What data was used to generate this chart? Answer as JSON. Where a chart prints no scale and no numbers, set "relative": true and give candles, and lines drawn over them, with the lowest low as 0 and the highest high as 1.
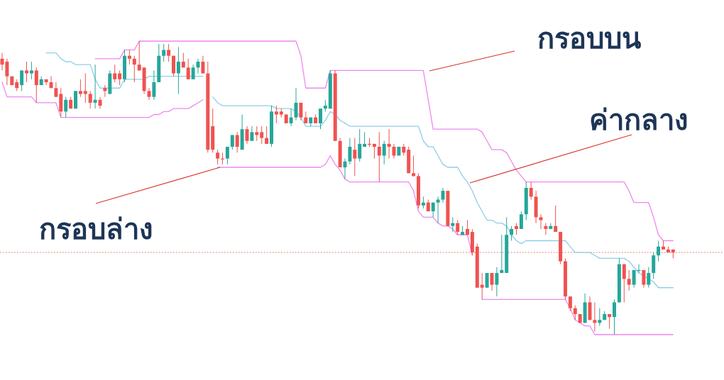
{
  "chart_data": {
    "type": "candlestick",
    "relative": true,
    "categories": [
      null,
      null,
      null,
      null,
      null,
      null,
      null,
      null,
      null,
      null,
      null,
      null,
      null,
      null,
      null,
      null,
      null,
      null,
      null,
      null,
      null,
      null,
      null,
      null,
      null,
      null,
      null,
      null,
      null,
      null,
      null,
      null,
      null,
      null,
      null,
      null,
      null,
      null,
      null,
      null,
      null,
      null,
      null,
      null,
      null,
      null,
      null,
      null,
      null,
      null,
      null,
      null,
      null,
      null,
      null,
      null,
      null,
      null,
      null,
      null,
      null,
      null,
      null,
      null,
      null,
      null,
      null,
      null,
      null,
      null,
      null,
      null,
      null,
      null,
      null,
      null,
      null,
      null,
      null,
      null,
      null,
      null,
      null,
      null,
      null,
      null,
      null,
      null,
      null,
      null,
      null,
      null,
      null,
      null,
      null,
      null,
      null,
      null,
      null,
      null,
      null,
      null,
      null,
      null,
      null,
      null,
      null,
      null,
      null,
      null,
      null,
      null,
      null,
      null,
      null,
      null,
      null,
      null,
      null,
      null,
      null,
      null,
      null,
      null,
      null,
      null,
      null,
      null,
      null,
      null,
      null,
      null,
      null,
      null,
      null,
      null,
      null,
      null
    ],
    "ohlc": [
      [
        0.94,
        0.96,
        0.9,
        0.92
      ],
      [
        0.93,
        0.94,
        0.85,
        0.88
      ],
      [
        0.88,
        0.88,
        0.85,
        0.85
      ],
      [
        0.86,
        0.87,
        0.83,
        0.84
      ],
      [
        0.85,
        0.9,
        0.83,
        0.9
      ],
      [
        0.9,
        0.93,
        0.86,
        0.89
      ],
      [
        0.89,
        0.93,
        0.87,
        0.9
      ],
      [
        0.9,
        0.91,
        0.79,
        0.85
      ],
      [
        0.85,
        0.88,
        0.85,
        0.87
      ],
      [
        0.87,
        0.87,
        0.85,
        0.86
      ],
      [
        0.86,
        0.88,
        0.84,
        0.84
      ],
      [
        0.84,
        0.86,
        0.81,
        0.81
      ],
      [
        0.82,
        0.84,
        0.74,
        0.76
      ],
      [
        0.76,
        0.81,
        0.74,
        0.8
      ],
      [
        0.8,
        0.81,
        0.77,
        0.77
      ],
      [
        0.77,
        0.83,
        0.77,
        0.83
      ],
      [
        0.83,
        0.87,
        0.81,
        0.82
      ],
      [
        0.83,
        0.89,
        0.79,
        0.82
      ],
      [
        0.82,
        0.83,
        0.77,
        0.79
      ],
      [
        0.79,
        0.92,
        0.77,
        0.8
      ],
      [
        0.8,
        0.81,
        0.77,
        0.78
      ],
      [
        0.84,
        0.85,
        0.81,
        0.83
      ],
      [
        0.82,
        0.9,
        0.82,
        0.89
      ],
      [
        0.89,
        0.92,
        0.86,
        0.87
      ],
      [
        0.89,
        0.9,
        0.85,
        0.87
      ],
      [
        0.87,
        0.97,
        0.86,
        0.95
      ],
      [
        0.95,
        0.97,
        0.92,
        0.94
      ],
      [
        0.94,
        0.95,
        0.86,
        0.92
      ],
      [
        0.92,
        1.0,
        0.9,
        0.9
      ],
      [
        0.91,
        0.91,
        0.82,
        0.83
      ],
      [
        0.83,
        0.84,
        0.8,
        0.81
      ],
      [
        0.81,
        0.9,
        0.8,
        0.86
      ],
      [
        0.86,
        0.99,
        0.86,
        0.95
      ],
      [
        0.95,
        0.99,
        0.93,
        0.97
      ],
      [
        0.97,
        0.99,
        0.93,
        0.95
      ],
      [
        0.95,
        0.95,
        0.88,
        0.89
      ],
      [
        0.89,
        0.98,
        0.82,
        0.93
      ],
      [
        0.93,
        0.96,
        0.91,
        0.91
      ],
      [
        0.91,
        0.94,
        0.87,
        0.87
      ],
      [
        0.87,
        0.92,
        0.87,
        0.91
      ],
      [
        0.91,
        0.94,
        0.89,
        0.93
      ],
      [
        0.93,
        0.95,
        0.89,
        0.89
      ],
      [
        0.89,
        0.93,
        0.62,
        0.63
      ],
      [
        0.71,
        0.77,
        0.62,
        0.63
      ],
      [
        0.62,
        0.63,
        0.58,
        0.6
      ],
      [
        0.6,
        0.62,
        0.58,
        0.6
      ],
      [
        0.6,
        0.64,
        0.58,
        0.64
      ],
      [
        0.64,
        0.68,
        0.63,
        0.68
      ],
      [
        0.68,
        0.69,
        0.62,
        0.64
      ],
      [
        0.63,
        0.75,
        0.63,
        0.7
      ],
      [
        0.7,
        0.71,
        0.65,
        0.66
      ],
      [
        0.66,
        0.71,
        0.66,
        0.69
      ],
      [
        0.69,
        0.71,
        0.66,
        0.68
      ],
      [
        0.69,
        0.71,
        0.65,
        0.67
      ],
      [
        0.67,
        0.71,
        0.65,
        0.65
      ],
      [
        0.65,
        0.78,
        0.64,
        0.76
      ],
      [
        0.76,
        0.78,
        0.72,
        0.75
      ],
      [
        0.76,
        0.77,
        0.74,
        0.75
      ],
      [
        0.75,
        0.75,
        0.72,
        0.72
      ],
      [
        0.72,
        0.77,
        0.71,
        0.74
      ],
      [
        0.74,
        0.84,
        0.73,
        0.79
      ],
      [
        0.79,
        0.79,
        0.73,
        0.74
      ],
      [
        0.74,
        0.76,
        0.72,
        0.72
      ],
      [
        0.72,
        0.74,
        0.71,
        0.74
      ],
      [
        0.74,
        0.75,
        0.72,
        0.72
      ],
      [
        0.72,
        0.77,
        0.7,
        0.77
      ],
      [
        0.77,
        0.8,
        0.76,
        0.78
      ],
      [
        0.77,
        0.9,
        0.77,
        0.89
      ],
      [
        0.89,
        0.9,
        0.66,
        0.66
      ],
      [
        0.66,
        0.67,
        0.57,
        0.57
      ],
      [
        0.57,
        0.6,
        0.53,
        0.59
      ],
      [
        0.59,
        0.67,
        0.58,
        0.64
      ],
      [
        0.63,
        0.67,
        0.54,
        0.6
      ],
      [
        0.6,
        0.7,
        0.59,
        0.65
      ],
      [
        0.64,
        0.69,
        0.64,
        0.65
      ],
      [
        0.65,
        0.67,
        0.64,
        0.65
      ],
      [
        0.65,
        0.65,
        0.6,
        0.64
      ],
      [
        0.64,
        0.69,
        0.52,
        0.61
      ],
      [
        0.61,
        0.66,
        0.58,
        0.65
      ],
      [
        0.65,
        0.7,
        0.6,
        0.64
      ],
      [
        0.64,
        0.65,
        0.6,
        0.61
      ],
      [
        0.61,
        0.64,
        0.61,
        0.64
      ],
      [
        0.64,
        0.65,
        0.61,
        0.62
      ],
      [
        0.63,
        0.64,
        0.55,
        0.55
      ],
      [
        0.55,
        0.61,
        0.54,
        0.54
      ],
      [
        0.54,
        0.55,
        0.43,
        0.44
      ],
      [
        0.44,
        0.47,
        0.43,
        0.45
      ],
      [
        0.45,
        0.46,
        0.42,
        0.42
      ],
      [
        0.42,
        0.45,
        0.4,
        0.45
      ],
      [
        0.45,
        0.47,
        0.38,
        0.46
      ],
      [
        0.46,
        0.5,
        0.45,
        0.49
      ],
      [
        0.49,
        0.49,
        0.37,
        0.37
      ],
      [
        0.37,
        0.4,
        0.35,
        0.38
      ],
      [
        0.38,
        0.39,
        0.34,
        0.35
      ],
      [
        0.34,
        0.37,
        0.34,
        0.35
      ],
      [
        0.36,
        0.39,
        0.34,
        0.34
      ],
      [
        0.35,
        0.36,
        0.27,
        0.28
      ],
      [
        0.3,
        0.31,
        0.16,
        0.16
      ],
      [
        0.17,
        0.21,
        0.12,
        0.16
      ],
      [
        0.16,
        0.21,
        0.16,
        0.21
      ],
      [
        0.21,
        0.21,
        0.15,
        0.17
      ],
      [
        0.17,
        0.23,
        0.13,
        0.21
      ],
      [
        0.21,
        0.34,
        0.21,
        0.22
      ],
      [
        0.21,
        0.4,
        0.21,
        0.34
      ],
      [
        0.34,
        0.37,
        0.32,
        0.36
      ],
      [
        0.37,
        0.38,
        0.34,
        0.36
      ],
      [
        0.36,
        0.42,
        0.36,
        0.41
      ],
      [
        0.41,
        0.52,
        0.39,
        0.5
      ],
      [
        0.5,
        0.52,
        0.46,
        0.47
      ],
      [
        0.47,
        0.49,
        0.38,
        0.4
      ],
      [
        0.4,
        0.41,
        0.36,
        0.39
      ],
      [
        0.37,
        0.38,
        0.34,
        0.36
      ],
      [
        0.36,
        0.38,
        0.36,
        0.37
      ],
      [
        0.37,
        0.44,
        0.35,
        0.35
      ],
      [
        0.35,
        0.35,
        0.24,
        0.25
      ],
      [
        0.25,
        0.26,
        0.12,
        0.13
      ],
      [
        0.13,
        0.13,
        0.08,
        0.09
      ],
      [
        0.09,
        0.1,
        0.05,
        0.07
      ],
      [
        0.07,
        0.07,
        0.04,
        0.04
      ],
      [
        0.04,
        0.14,
        0.04,
        0.11
      ],
      [
        0.11,
        0.13,
        0.05,
        0.05
      ],
      [
        0.05,
        0.11,
        0.01,
        0.04
      ],
      [
        0.04,
        0.09,
        0.03,
        0.05
      ],
      [
        0.05,
        0.08,
        0.05,
        0.07
      ],
      [
        0.07,
        0.07,
        0.02,
        0.06
      ],
      [
        0.06,
        0.12,
        0.0,
        0.11
      ],
      [
        0.11,
        0.26,
        0.11,
        0.24
      ],
      [
        0.24,
        0.24,
        0.11,
        0.19
      ],
      [
        0.19,
        0.22,
        0.15,
        0.17
      ],
      [
        0.17,
        0.22,
        0.16,
        0.22
      ],
      [
        0.22,
        0.24,
        0.21,
        0.22
      ],
      [
        0.22,
        0.22,
        0.16,
        0.17
      ],
      [
        0.17,
        0.23,
        0.16,
        0.21
      ],
      [
        0.21,
        0.28,
        0.19,
        0.27
      ],
      [
        0.27,
        0.32,
        0.25,
        0.3
      ],
      [
        0.3,
        0.32,
        0.29,
        0.29
      ],
      [
        0.29,
        0.3,
        0.28,
        0.28
      ],
      [
        0.29,
        0.29,
        0.26,
        0.28
      ]
    ],
    "colors": [
      "#ef5350",
      "#ef5350",
      "#ef5350",
      "#ef5350",
      "#26a69a",
      "#ef5350",
      "#26a69a",
      "#ef5350",
      "#26a69a",
      "#ef5350",
      "#ef5350",
      "#ef5350",
      "#ef5350",
      "#26a69a",
      "#ef5350",
      "#26a69a",
      "#ef5350",
      "#ef5350",
      "#ef5350",
      "#26a69a",
      "#ef5350",
      "#ef5350",
      "#26a69a",
      "#ef5350",
      "#ef5350",
      "#26a69a",
      "#ef5350",
      "#ef5350",
      "#ef5350",
      "#ef5350",
      "#ef5350",
      "#26a69a",
      "#26a69a",
      "#26a69a",
      "#ef5350",
      "#ef5350",
      "#26a69a",
      "#ef5350",
      "#ef5350",
      "#26a69a",
      "#26a69a",
      "#ef5350",
      "#ef5350",
      "#ef5350",
      "#ef5350",
      "#ef5350",
      "#26a69a",
      "#26a69a",
      "#ef5350",
      "#26a69a",
      "#ef5350",
      "#26a69a",
      "#ef5350",
      "#ef5350",
      "#ef5350",
      "#26a69a",
      "#ef5350",
      "#ef5350",
      "#ef5350",
      "#26a69a",
      "#26a69a",
      "#ef5350",
      "#ef5350",
      "#26a69a",
      "#ef5350",
      "#26a69a",
      "#26a69a",
      "#26a69a",
      "#ef5350",
      "#ef5350",
      "#26a69a",
      "#26a69a",
      "#ef5350",
      "#26a69a",
      "#26a69a",
      "#ef5350",
      "#ef5350",
      "#ef5350",
      "#26a69a",
      "#ef5350",
      "#ef5350",
      "#26a69a",
      "#ef5350",
      "#ef5350",
      "#ef5350",
      "#ef5350",
      "#26a69a",
      "#ef5350",
      "#26a69a",
      "#26a69a",
      "#26a69a",
      "#ef5350",
      "#26a69a",
      "#ef5350",
      "#26a69a",
      "#ef5350",
      "#ef5350",
      "#ef5350",
      "#ef5350",
      "#26a69a",
      "#ef5350",
      "#26a69a",
      "#26a69a",
      "#26a69a",
      "#26a69a",
      "#ef5350",
      "#26a69a",
      "#26a69a",
      "#ef5350",
      "#ef5350",
      "#ef5350",
      "#ef5350",
      "#26a69a",
      "#ef5350",
      "#ef5350",
      "#ef5350",
      "#ef5350",
      "#ef5350",
      "#ef5350",
      "#26a69a",
      "#ef5350",
      "#ef5350",
      "#26a69a",
      "#26a69a",
      "#ef5350",
      "#26a69a",
      "#26a69a",
      "#ef5350",
      "#ef5350",
      "#26a69a",
      "#26a69a",
      "#ef5350",
      "#26a69a",
      "#26a69a",
      "#26a69a",
      "#ef5350",
      "#ef5350",
      "#ef5350"
    ],
    "series": [
      {
        "type": "line",
        "color": "#ee88ee",
        "values": [
          null,
          null,
          null,
          null,
          null,
          null,
          null,
          null,
          null,
          null,
          null,
          null,
          null,
          null,
          null,
          null,
          null,
          null,
          null,
          0.94,
          0.94,
          0.94,
          0.94,
          0.94,
          0.94,
          0.97,
          0.97,
          0.97,
          1.0,
          1.0,
          1.0,
          1.0,
          1.0,
          1.0,
          1.0,
          1.0,
          1.0,
          1.0,
          1.0,
          1.0,
          1.0,
          1.0,
          1.0,
          1.0,
          1.0,
          1.0,
          1.0,
          1.0,
          1.0,
          1.0,
          1.0,
          1.0,
          1.0,
          1.0,
          1.0,
          1.0,
          1.0,
          1.0,
          1.0,
          1.0,
          1.0,
          0.95,
          0.84,
          0.84,
          0.84,
          0.84,
          0.84,
          0.9,
          0.9,
          0.9,
          0.9,
          0.9,
          0.9,
          0.9,
          0.9,
          0.9,
          0.9,
          0.9,
          0.9,
          0.9,
          0.9,
          0.9,
          0.9,
          0.9,
          0.9,
          0.9,
          0.9,
          0.8,
          0.7,
          0.7,
          0.7,
          0.7,
          0.7,
          0.7,
          0.7,
          0.7,
          0.7,
          0.7,
          0.69,
          0.66,
          0.63,
          0.63,
          0.63,
          0.62,
          0.59,
          0.56,
          0.54,
          0.52,
          0.52,
          0.52,
          0.52,
          0.52,
          0.52,
          0.52,
          0.52,
          0.52,
          0.52,
          0.52,
          0.52,
          0.52,
          0.52,
          0.52,
          0.52,
          0.52,
          0.52,
          0.52,
          0.52,
          0.52,
          0.49,
          0.45,
          0.45,
          0.45,
          0.45,
          0.4,
          0.34,
          0.32,
          0.32,
          0.32
        ]
      },
      {
        "type": "line",
        "color": "#8ecfe8",
        "values": [
          null,
          null,
          null,
          null,
          null,
          null,
          null,
          null,
          null,
          0.96,
          0.96,
          0.96,
          0.94,
          0.93,
          0.93,
          0.92,
          0.92,
          0.92,
          0.92,
          0.87,
          0.84,
          0.84,
          0.84,
          0.84,
          0.84,
          0.87,
          0.87,
          0.87,
          0.87,
          0.87,
          0.88,
          0.88,
          0.88,
          0.88,
          0.88,
          0.88,
          0.88,
          0.88,
          0.88,
          0.88,
          0.88,
          0.88,
          null,
          0.81,
          0.79,
          0.78,
          0.78,
          0.78,
          0.78,
          0.78,
          0.78,
          0.78,
          0.78,
          0.78,
          0.78,
          0.78,
          0.77,
          0.77,
          0.77,
          0.77,
          0.76,
          0.74,
          0.71,
          0.71,
          0.71,
          0.71,
          0.73,
          0.76,
          0.75,
          0.73,
          0.72,
          0.71,
          0.71,
          0.71,
          0.71,
          0.71,
          0.71,
          0.71,
          0.71,
          0.71,
          0.71,
          0.71,
          0.71,
          0.71,
          0.71,
          0.71,
          0.66,
          0.64,
          0.64,
          0.61,
          0.58,
          0.57,
          0.57,
          0.57,
          0.54,
          0.52,
          0.49,
          0.45,
          0.42,
          0.39,
          0.39,
          0.38,
          0.38,
          0.37,
          0.34,
          0.32,
          0.31,
          0.32,
          0.32,
          0.32,
          0.32,
          0.32,
          0.32,
          0.32,
          0.32,
          0.32,
          0.3,
          0.28,
          0.28,
          0.28,
          0.28,
          0.27,
          0.26,
          0.26,
          0.26,
          0.26,
          0.26,
          0.26,
          0.25,
          0.23,
          0.21,
          0.2,
          0.19,
          0.18,
          0.16,
          0.16,
          0.16,
          0.16
        ]
      },
      {
        "type": "line",
        "color": "#ee88ee",
        "values": [
          0.86,
          0.81,
          0.81,
          0.81,
          0.81,
          0.81,
          0.81,
          0.79,
          0.79,
          0.79,
          0.79,
          0.79,
          0.74,
          0.74,
          0.74,
          0.74,
          0.74,
          0.74,
          0.74,
          0.74,
          0.74,
          0.74,
          0.74,
          0.74,
          0.74,
          0.74,
          0.74,
          0.74,
          0.74,
          0.74,
          0.74,
          0.75,
          0.75,
          0.76,
          0.76,
          0.77,
          0.77,
          0.77,
          0.77,
          0.78,
          0.79,
          0.8,
          null,
          null,
          0.57,
          0.57,
          0.57,
          0.57,
          0.57,
          0.57,
          0.57,
          0.57,
          0.57,
          0.57,
          0.57,
          0.57,
          0.57,
          0.57,
          0.57,
          0.57,
          0.57,
          0.57,
          0.57,
          0.57,
          0.57,
          0.57,
          0.58,
          0.61,
          0.58,
          0.56,
          0.53,
          0.52,
          0.52,
          0.52,
          0.52,
          0.52,
          0.52,
          0.52,
          0.52,
          0.52,
          0.52,
          0.52,
          0.52,
          0.52,
          0.49,
          0.42,
          0.4,
          0.4,
          0.4,
          0.38,
          0.37,
          0.37,
          0.36,
          0.34,
          0.34,
          0.34,
          0.27,
          null,
          0.12,
          0.12,
          0.12,
          0.12,
          0.12,
          0.12,
          0.12,
          0.12,
          0.12,
          0.12,
          0.12,
          0.12,
          0.12,
          0.12,
          0.12,
          0.12,
          0.12,
          0.12,
          0.09,
          0.05,
          0.04,
          0.03,
          0.03,
          0.0,
          0.0,
          0.0,
          0.0,
          0.0,
          0.0,
          0.0,
          0.0,
          0.0,
          0.0,
          0.0,
          0.0,
          0.0,
          0.0,
          0.0,
          0.0,
          0.0
        ]
      }
    ],
    "ref_lines": [
      {
        "axis": "y",
        "value": 0.28,
        "color": "#e0605a",
        "line_style": "dotted"
      }
    ],
    "annotations": [
      "กรอบบน",
      "ค่ากลาง",
      "กรอบล่าง"
    ]
  }
}
